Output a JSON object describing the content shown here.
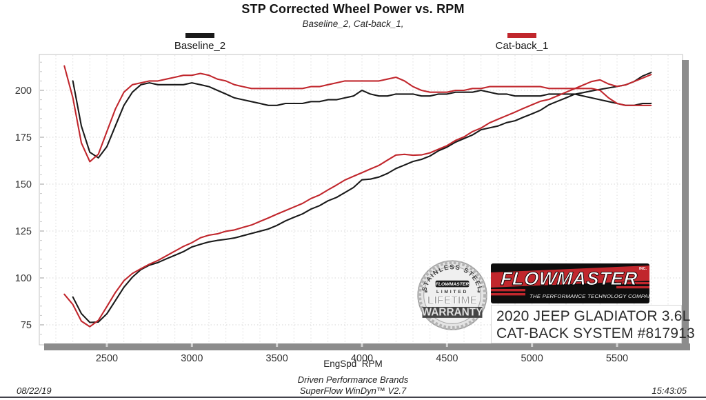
{
  "header": {
    "title": "STP Corrected Wheel Power vs. RPM",
    "subtitle": "Baseline_2, Cat-back_1,"
  },
  "legend": [
    {
      "label": "Baseline_2",
      "color": "#1a1a1a"
    },
    {
      "label": "Cat-back_1",
      "color": "#c1272d"
    }
  ],
  "chart_data": {
    "type": "line",
    "title": "STP Corrected Wheel Power vs. RPM",
    "subtitle": "Baseline_2, Cat-back_1,",
    "xlabel": "EngSpd  RPM",
    "ylabel": "",
    "x_ticks": [
      2500,
      3000,
      3500,
      4000,
      4500,
      5000,
      5500
    ],
    "y_ticks": [
      75,
      100,
      125,
      150,
      175,
      200
    ],
    "x_range": [
      2100,
      5890
    ],
    "y_range": [
      64,
      219
    ],
    "x_gridline_step": 100,
    "y_gridline_step": 25,
    "grid": true,
    "legend_position": "top",
    "rpm": [
      2250,
      2300,
      2350,
      2400,
      2450,
      2500,
      2550,
      2600,
      2650,
      2700,
      2750,
      2800,
      2850,
      2900,
      2950,
      3000,
      3050,
      3100,
      3150,
      3200,
      3250,
      3300,
      3350,
      3400,
      3450,
      3500,
      3550,
      3600,
      3650,
      3700,
      3750,
      3800,
      3850,
      3900,
      3950,
      4000,
      4050,
      4100,
      4150,
      4200,
      4250,
      4300,
      4350,
      4400,
      4450,
      4500,
      4550,
      4600,
      4650,
      4700,
      4750,
      4800,
      4850,
      4900,
      4950,
      5000,
      5050,
      5100,
      5150,
      5200,
      5250,
      5300,
      5350,
      5400,
      5450,
      5500,
      5550,
      5600,
      5650,
      5700
    ],
    "series": [
      {
        "name": "Baseline_2",
        "color": "#1a1a1a",
        "torque": [
          null,
          205,
          181,
          167,
          164,
          170,
          181,
          192,
          199,
          203,
          204,
          203,
          203,
          203,
          203,
          204,
          203,
          202,
          200,
          198,
          196,
          195,
          194,
          193,
          192,
          192,
          193,
          193,
          193,
          194,
          194,
          195,
          195,
          196,
          197,
          200,
          198,
          197,
          197,
          198,
          198,
          198,
          197,
          197,
          198,
          198,
          199,
          199,
          199,
          200,
          199,
          198,
          198,
          197,
          197,
          197,
          197,
          198,
          198,
          198,
          198,
          197,
          196,
          195,
          194,
          193,
          192,
          192,
          193,
          193
        ],
        "power": [
          null,
          89.8,
          81.0,
          76.3,
          76.5,
          80.9,
          87.9,
          95.0,
          100.4,
          104.4,
          106.8,
          108.2,
          110.2,
          112.1,
          114.0,
          116.5,
          117.9,
          119.2,
          120.0,
          120.6,
          121.3,
          122.5,
          123.7,
          124.9,
          126.1,
          128.0,
          130.4,
          132.3,
          134.1,
          136.7,
          138.5,
          141.1,
          142.9,
          145.5,
          148.2,
          152.3,
          152.7,
          153.8,
          155.7,
          158.3,
          160.2,
          162.1,
          163.2,
          165.0,
          167.8,
          169.7,
          172.4,
          174.3,
          176.2,
          179.0,
          180.0,
          181.0,
          182.8,
          183.8,
          185.7,
          187.5,
          189.4,
          192.3,
          194.2,
          196.0,
          197.9,
          198.8,
          199.7,
          200.5,
          201.3,
          202.1,
          202.9,
          204.7,
          207.6,
          209.5
        ]
      },
      {
        "name": "Cat-back_1",
        "color": "#c1272d",
        "torque": [
          213,
          196,
          172,
          162,
          166,
          178,
          190,
          199,
          203,
          204,
          205,
          205,
          206,
          207,
          208,
          208,
          209,
          208,
          206,
          205,
          203,
          202,
          201,
          201,
          201,
          201,
          201,
          201,
          201,
          202,
          202,
          203,
          204,
          205,
          205,
          205,
          205,
          205,
          206,
          207,
          205,
          202,
          200,
          199,
          199,
          199,
          200,
          200,
          201,
          201,
          202,
          202,
          202,
          202,
          202,
          202,
          202,
          201,
          201,
          201,
          201,
          201,
          201,
          200,
          196,
          193,
          192,
          192,
          192,
          192
        ],
        "power": [
          91.3,
          85.8,
          77.0,
          74.0,
          77.4,
          84.7,
          92.2,
          98.5,
          102.4,
          104.9,
          107.3,
          109.3,
          111.8,
          114.3,
          116.8,
          118.8,
          121.4,
          122.8,
          123.5,
          124.9,
          125.6,
          126.9,
          128.2,
          130.1,
          132.0,
          134.0,
          135.9,
          137.8,
          139.7,
          142.3,
          144.2,
          146.9,
          149.5,
          152.2,
          154.2,
          156.1,
          158.1,
          160.0,
          162.8,
          165.5,
          165.9,
          165.4,
          165.6,
          166.7,
          168.6,
          170.5,
          173.3,
          175.2,
          178.0,
          179.9,
          182.7,
          184.6,
          186.5,
          188.4,
          190.4,
          192.3,
          194.2,
          195.2,
          197.1,
          199.0,
          200.9,
          202.8,
          204.7,
          205.6,
          203.4,
          202.1,
          202.9,
          204.7,
          206.5,
          208.4
        ]
      }
    ]
  },
  "branding": {
    "seal": {
      "arc_text": "STAINLESS STEEL",
      "brand": "FLOWMASTER",
      "line1": "LIMITED",
      "line2": "LIFETIME",
      "line3": "WARRANTY"
    },
    "logo": {
      "name": "FLOWMASTER",
      "inc": "INC.",
      "tagline": "THE PERFORMANCE TECHNOLOGY COMPANY",
      "red": "#c1272d"
    },
    "vehicle_line1": "2020 JEEP GLADIATOR 3.6L",
    "vehicle_line2": "CAT-BACK SYSTEM #817913"
  },
  "footer": {
    "xlabel": "EngSpd  RPM",
    "date": "08/22/19",
    "brand_line": "Driven Performance Brands",
    "software_line": "SuperFlow WinDyn™ V2.7",
    "time": "15:43:05"
  }
}
